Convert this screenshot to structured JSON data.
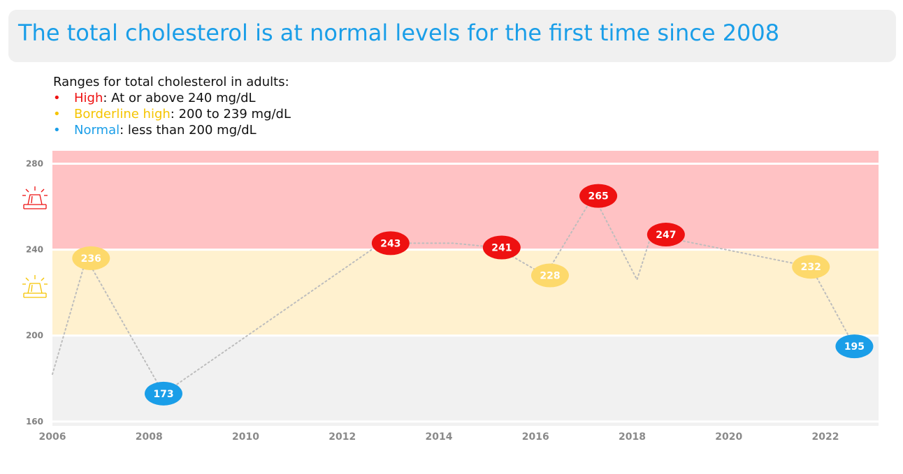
{
  "title": "The total cholesterol is at normal levels for the first time since 2008",
  "legend": {
    "heading": "Ranges for total cholesterol in adults:",
    "items": [
      {
        "bullet": "•",
        "name": "High",
        "rest": ": At or above 240 mg/dL",
        "color": "#ee1111"
      },
      {
        "bullet": "•",
        "name": "Borderline high",
        "rest": ": 200 to 239 mg/dL",
        "color": "#f5c400"
      },
      {
        "bullet": "•",
        "name": "Normal",
        "rest": ": less than 200 mg/dL",
        "color": "#1a9ee8"
      }
    ]
  },
  "icons": [
    "high-alarm-icon",
    "borderline-alarm-icon"
  ],
  "colors": {
    "title": "#1a9ee8",
    "high_band": "#ffc2c4",
    "borderline_band": "#fff1cf",
    "normal_band": "#f1f1f1",
    "high_marker": "#ee1111",
    "borderline_marker": "#fdd96b",
    "normal_marker": "#1a9ee8",
    "line": "#bdbdbd"
  },
  "chart_data": {
    "type": "line",
    "title": "",
    "xlabel": "",
    "ylabel": "",
    "xlim": [
      2006,
      2023.1
    ],
    "ylim": [
      158,
      286
    ],
    "xticks": [
      2006,
      2008,
      2010,
      2012,
      2014,
      2016,
      2018,
      2020,
      2022
    ],
    "yticks": [
      160,
      200,
      240,
      280
    ],
    "bands": [
      {
        "name": "High",
        "from": 240,
        "to": 286
      },
      {
        "name": "Borderline high",
        "from": 200,
        "to": 240
      },
      {
        "name": "Normal",
        "from": 158,
        "to": 200
      }
    ],
    "line_points": [
      {
        "x": 2006.0,
        "y": 182
      },
      {
        "x": 2006.7,
        "y": 236
      },
      {
        "x": 2008.3,
        "y": 173
      },
      {
        "x": 2012.8,
        "y": 243
      },
      {
        "x": 2014.3,
        "y": 243
      },
      {
        "x": 2015.2,
        "y": 241
      },
      {
        "x": 2016.2,
        "y": 228
      },
      {
        "x": 2017.2,
        "y": 265
      },
      {
        "x": 2018.1,
        "y": 226
      },
      {
        "x": 2018.4,
        "y": 247
      },
      {
        "x": 2021.7,
        "y": 232
      },
      {
        "x": 2022.6,
        "y": 195
      }
    ],
    "points": [
      {
        "x": 2006.8,
        "y": 236,
        "label": "236",
        "category": "borderline"
      },
      {
        "x": 2008.3,
        "y": 173,
        "label": "173",
        "category": "normal"
      },
      {
        "x": 2013.0,
        "y": 243,
        "label": "243",
        "category": "high"
      },
      {
        "x": 2015.3,
        "y": 241,
        "label": "241",
        "category": "high"
      },
      {
        "x": 2016.3,
        "y": 228,
        "label": "228",
        "category": "borderline"
      },
      {
        "x": 2017.3,
        "y": 265,
        "label": "265",
        "category": "high"
      },
      {
        "x": 2018.7,
        "y": 247,
        "label": "247",
        "category": "high"
      },
      {
        "x": 2021.7,
        "y": 232,
        "label": "232",
        "category": "borderline"
      },
      {
        "x": 2022.6,
        "y": 195,
        "label": "195",
        "category": "normal"
      }
    ]
  }
}
